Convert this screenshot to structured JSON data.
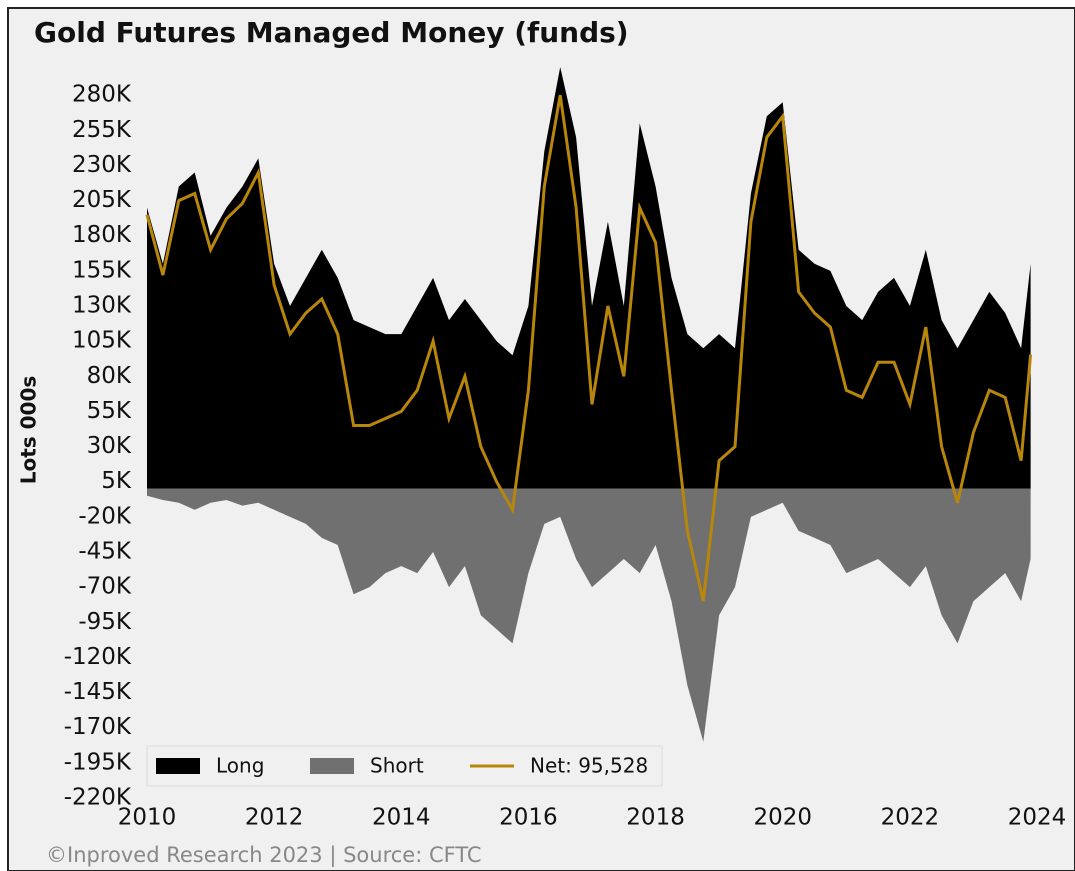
{
  "chart_data": {
    "type": "area",
    "title": "Gold Futures Managed Money (funds)",
    "ylabel": "Lots 000s",
    "footer": "©Inproved Research 2023 | Source: CFTC",
    "x": [
      2010,
      2010.25,
      2010.5,
      2010.75,
      2011,
      2011.25,
      2011.5,
      2011.75,
      2012,
      2012.25,
      2012.5,
      2012.75,
      2013,
      2013.25,
      2013.5,
      2013.75,
      2014,
      2014.25,
      2014.5,
      2014.75,
      2015,
      2015.25,
      2015.5,
      2015.75,
      2016,
      2016.25,
      2016.5,
      2016.75,
      2017,
      2017.25,
      2017.5,
      2017.75,
      2018,
      2018.25,
      2018.5,
      2018.75,
      2019,
      2019.25,
      2019.5,
      2019.75,
      2020,
      2020.25,
      2020.5,
      2020.75,
      2021,
      2021.25,
      2021.5,
      2021.75,
      2022,
      2022.25,
      2022.5,
      2022.75,
      2023,
      2023.25,
      2023.5,
      2023.75,
      2023.9
    ],
    "series": [
      {
        "name": "Long",
        "color": "#000000",
        "values": [
          200000,
          160000,
          215000,
          225000,
          180000,
          200000,
          215000,
          235000,
          160000,
          130000,
          150000,
          170000,
          150000,
          120000,
          115000,
          110000,
          110000,
          130000,
          150000,
          120000,
          135000,
          120000,
          105000,
          95000,
          130000,
          240000,
          300000,
          250000,
          130000,
          190000,
          130000,
          260000,
          215000,
          150000,
          110000,
          100000,
          110000,
          100000,
          210000,
          265000,
          275000,
          170000,
          160000,
          155000,
          130000,
          120000,
          140000,
          150000,
          130000,
          170000,
          120000,
          100000,
          120000,
          140000,
          125000,
          100000,
          160000
        ]
      },
      {
        "name": "Short",
        "color": "#707070",
        "values": [
          -5000,
          -8000,
          -10000,
          -15000,
          -10000,
          -8000,
          -12000,
          -10000,
          -15000,
          -20000,
          -25000,
          -35000,
          -40000,
          -75000,
          -70000,
          -60000,
          -55000,
          -60000,
          -45000,
          -70000,
          -55000,
          -90000,
          -100000,
          -110000,
          -60000,
          -25000,
          -20000,
          -50000,
          -70000,
          -60000,
          -50000,
          -60000,
          -40000,
          -80000,
          -140000,
          -180000,
          -90000,
          -70000,
          -20000,
          -15000,
          -10000,
          -30000,
          -35000,
          -40000,
          -60000,
          -55000,
          -50000,
          -60000,
          -70000,
          -55000,
          -90000,
          -110000,
          -80000,
          -70000,
          -60000,
          -80000,
          -50000
        ]
      },
      {
        "name": "Net: 95,528",
        "color": "#b8860b",
        "values": [
          195000,
          152000,
          205000,
          210000,
          170000,
          192000,
          203000,
          225000,
          145000,
          110000,
          125000,
          135000,
          110000,
          45000,
          45000,
          50000,
          55000,
          70000,
          105000,
          50000,
          80000,
          30000,
          5000,
          -15000,
          70000,
          215000,
          280000,
          200000,
          60000,
          130000,
          80000,
          200000,
          175000,
          70000,
          -30000,
          -80000,
          20000,
          30000,
          190000,
          250000,
          265000,
          140000,
          125000,
          115000,
          70000,
          65000,
          90000,
          90000,
          60000,
          115000,
          30000,
          -10000,
          40000,
          70000,
          65000,
          20000,
          95528
        ]
      }
    ],
    "xlim": [
      2010,
      2024
    ],
    "xticks": [
      2010,
      2012,
      2014,
      2016,
      2018,
      2020,
      2022,
      2024
    ],
    "ylim": [
      -220000,
      305000
    ],
    "yticks": [
      {
        "value": 280000,
        "label": "280K"
      },
      {
        "value": 255000,
        "label": "255K"
      },
      {
        "value": 230000,
        "label": "230K"
      },
      {
        "value": 205000,
        "label": "205K"
      },
      {
        "value": 180000,
        "label": "180K"
      },
      {
        "value": 155000,
        "label": "155K"
      },
      {
        "value": 130000,
        "label": "130K"
      },
      {
        "value": 105000,
        "label": "105K"
      },
      {
        "value": 80000,
        "label": "80K"
      },
      {
        "value": 55000,
        "label": "55K"
      },
      {
        "value": 30000,
        "label": "30K"
      },
      {
        "value": 5000,
        "label": "5K"
      },
      {
        "value": -20000,
        "label": "-20K"
      },
      {
        "value": -45000,
        "label": "-45K"
      },
      {
        "value": -70000,
        "label": "-70K"
      },
      {
        "value": -95000,
        "label": "-95K"
      },
      {
        "value": -120000,
        "label": "-120K"
      },
      {
        "value": -145000,
        "label": "-145K"
      },
      {
        "value": -170000,
        "label": "-170K"
      },
      {
        "value": -195000,
        "label": "-195K"
      },
      {
        "value": -220000,
        "label": "-220K"
      }
    ],
    "legend": "lower left"
  }
}
